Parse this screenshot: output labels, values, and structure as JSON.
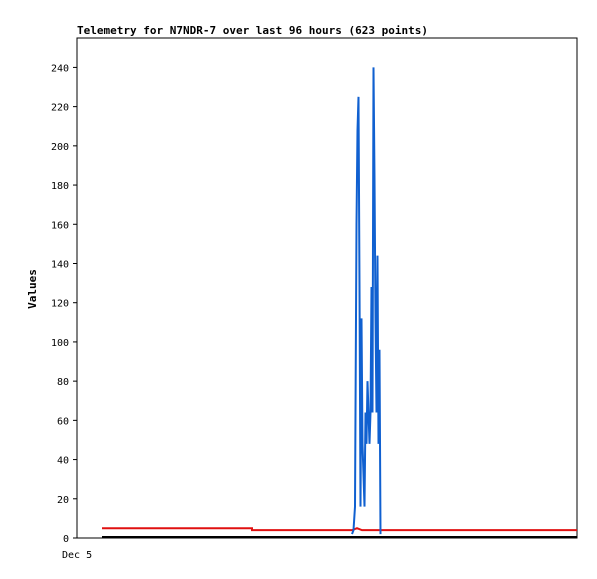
{
  "chart_data": {
    "type": "line",
    "title": "Telemetry for N7NDR-7 over last 96 hours (623 points)",
    "ylabel": "Values",
    "xlabel": "",
    "x_tick_labels": [
      {
        "label": "Dec 5",
        "x": 0
      }
    ],
    "ylim": [
      0,
      255
    ],
    "xlim": [
      0,
      100
    ],
    "y_ticks": [
      0,
      20,
      40,
      60,
      80,
      100,
      120,
      140,
      160,
      180,
      200,
      220,
      240
    ],
    "grid": false,
    "series": [
      {
        "color": "#e01010",
        "points": [
          [
            5,
            5
          ],
          [
            35,
            5
          ],
          [
            35,
            4
          ],
          [
            55,
            4
          ],
          [
            56,
            5
          ],
          [
            57,
            4
          ],
          [
            100,
            4
          ]
        ]
      },
      {
        "color": "#000000",
        "points": [
          [
            5,
            0.5
          ],
          [
            100,
            0.5
          ]
        ]
      },
      {
        "color": "#1060d0",
        "points": [
          [
            55,
            2
          ],
          [
            55.3,
            4
          ],
          [
            55.6,
            16
          ],
          [
            55.9,
            160
          ],
          [
            56.1,
            208
          ],
          [
            56.3,
            225
          ],
          [
            56.5,
            128
          ],
          [
            56.7,
            16
          ],
          [
            56.9,
            112
          ],
          [
            57.1,
            48
          ],
          [
            57.3,
            32
          ],
          [
            57.5,
            16
          ],
          [
            57.7,
            64
          ],
          [
            57.9,
            48
          ],
          [
            58.1,
            80
          ],
          [
            58.3,
            64
          ],
          [
            58.5,
            48
          ],
          [
            58.7,
            64
          ],
          [
            58.9,
            128
          ],
          [
            59.1,
            64
          ],
          [
            59.3,
            240
          ],
          [
            59.5,
            184
          ],
          [
            59.7,
            112
          ],
          [
            59.9,
            64
          ],
          [
            60.1,
            144
          ],
          [
            60.3,
            48
          ],
          [
            60.5,
            96
          ],
          [
            60.7,
            2
          ]
        ]
      }
    ]
  }
}
